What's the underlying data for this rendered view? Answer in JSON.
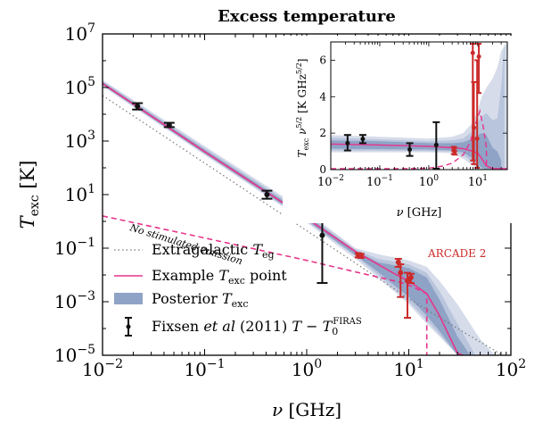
{
  "chart_data": [
    {
      "type": "line",
      "title": "Excess temperature",
      "xlabel": "ν [GHz]",
      "ylabel": "T_exc [K]",
      "x_scale": "log",
      "y_scale": "log",
      "xlim": [
        0.01,
        100
      ],
      "ylim": [
        1e-05,
        10000000
      ],
      "x_ticks": [
        {
          "v": 0.01,
          "b": "10",
          "e": "−2"
        },
        {
          "v": 0.1,
          "b": "10",
          "e": "−1"
        },
        {
          "v": 1,
          "b": "10",
          "e": "0"
        },
        {
          "v": 10,
          "b": "10",
          "e": "1"
        },
        {
          "v": 100,
          "b": "10",
          "e": "2"
        }
      ],
      "y_ticks": [
        {
          "v": 1e-05,
          "b": "10",
          "e": "−5"
        },
        {
          "v": 0.001,
          "b": "10",
          "e": "−3"
        },
        {
          "v": 0.1,
          "b": "10",
          "e": "−1"
        },
        {
          "v": 10,
          "b": "10",
          "e": "1"
        },
        {
          "v": 1000,
          "b": "10",
          "e": "3"
        },
        {
          "v": 100000,
          "b": "10",
          "e": "5"
        },
        {
          "v": 10000000,
          "b": "10",
          "e": "7"
        }
      ],
      "series": [
        {
          "name": "Extragalactic T_eg",
          "style": "dotted",
          "color": "#777777",
          "x": [
            0.01,
            0.1,
            1,
            10,
            30,
            100
          ],
          "y": [
            50000,
            150,
            0.45,
            0.0013,
            0.0001,
            6.6e-06
          ]
        },
        {
          "name": "Example T_exc point",
          "style": "solid",
          "color": "#e8338a",
          "x": [
            0.01,
            0.1,
            1,
            3,
            8,
            10,
            15,
            20,
            30,
            100
          ],
          "y": [
            140000,
            400,
            1.3,
            0.075,
            0.009,
            0.006,
            0.002,
            0.0003,
            1.2e-05,
            2e-06
          ]
        },
        {
          "name": "No stimulated emission",
          "style": "dashed",
          "color": "#e8338a",
          "x": [
            0.01,
            0.1,
            1,
            3,
            8,
            10,
            12,
            15,
            15.01
          ],
          "y": [
            1.6,
            0.24,
            0.035,
            0.013,
            0.0055,
            0.0042,
            0.003,
            0.002,
            1e-05
          ]
        }
      ],
      "posterior": {
        "name": "Posterior T_exc",
        "colors": [
          "#d6dcea",
          "#b9c5dc",
          "#8fa3c6"
        ],
        "bands": [
          {
            "x": [
              0.01,
              0.1,
              1,
              3,
              5,
              10,
              15,
              20,
              30,
              50,
              70
            ],
            "lo": [
              110000,
              300,
              0.9,
              0.04,
              0.008,
              0.0008,
              0.00015,
              5e-05,
              1e-05,
              1e-05,
              1e-05
            ],
            "hi": [
              190000,
              650,
              2.3,
              0.1,
              0.06,
              0.035,
              0.02,
              0.006,
              0.0008,
              4e-05,
              1e-05
            ]
          },
          {
            "x": [
              0.01,
              0.1,
              1,
              3,
              5,
              10,
              15,
              20,
              30,
              45
            ],
            "lo": [
              120000,
              330,
              1.0,
              0.05,
              0.01,
              0.001,
              0.0002,
              6e-05,
              1e-05,
              1e-05
            ],
            "hi": [
              175000,
              550,
              1.9,
              0.09,
              0.04,
              0.025,
              0.012,
              0.0025,
              0.00015,
              1e-05
            ]
          },
          {
            "x": [
              0.01,
              0.1,
              1,
              3,
              5,
              10,
              15,
              20,
              30,
              40
            ],
            "lo": [
              125000,
              350,
              1.1,
              0.055,
              0.013,
              0.0015,
              0.0003,
              8e-05,
              1e-05,
              1e-05
            ],
            "hi": [
              160000,
              480,
              1.6,
              0.08,
              0.03,
              0.018,
              0.008,
              0.0012,
              5e-05,
              1e-05
            ]
          }
        ]
      },
      "fixsen_points": [
        {
          "x": 0.022,
          "y": 20000,
          "lo": 15000,
          "hi": 26000
        },
        {
          "x": 0.045,
          "y": 4000,
          "lo": 3300,
          "hi": 4800
        },
        {
          "x": 0.408,
          "y": 10,
          "lo": 7,
          "hi": 14
        },
        {
          "x": 1.42,
          "y": 0.3,
          "lo": 0.005,
          "hi": 1.0
        }
      ],
      "arcade_points": [
        {
          "x": 3.2,
          "y": 0.055,
          "lo": 0.045,
          "hi": 0.065
        },
        {
          "x": 3.4,
          "y": 0.052,
          "lo": 0.043,
          "hi": 0.061
        },
        {
          "x": 7.9,
          "y": 0.03,
          "lo": 0.02,
          "hi": 0.04
        },
        {
          "x": 8.3,
          "y": 0.012,
          "lo": 0.0015,
          "hi": 0.025
        },
        {
          "x": 9.7,
          "y": 0.006,
          "lo": 0.00025,
          "hi": 0.012
        },
        {
          "x": 10.5,
          "y": 0.008,
          "lo": 0.005,
          "hi": 0.011
        }
      ],
      "legend": {
        "position": "lower-left",
        "items": [
          {
            "key": "eg",
            "text": "Extragalactic ",
            "math": "T",
            "sub": "eg"
          },
          {
            "key": "ex",
            "text": "Example ",
            "math": "T",
            "sub": "exc",
            "after": " point"
          },
          {
            "key": "post",
            "text": "Posterior ",
            "math": "T",
            "sub": "exc"
          },
          {
            "key": "fix",
            "text": "Fixsen ",
            "ital": "et al",
            "after": " (2011) ",
            "math": "T − T",
            "sub": "0",
            "sup": "FIRAS"
          }
        ]
      },
      "annotations": {
        "no_stim": "No stimulated emission",
        "arcade": "ARCADE 2"
      },
      "colors": {
        "red": "#cc2a2a",
        "black": "#111111",
        "pink": "#e8338a"
      }
    },
    {
      "type": "line",
      "inset": true,
      "xlabel": "ν [GHz]",
      "ylabel": "T_exc ν^5/2 [K GHz^5/2]",
      "x_scale": "log",
      "y_scale": "linear",
      "xlim": [
        0.01,
        40
      ],
      "ylim": [
        0,
        7
      ],
      "x_ticks": [
        {
          "v": 0.01,
          "b": "10",
          "e": "−2"
        },
        {
          "v": 0.1,
          "b": "10",
          "e": "−1"
        },
        {
          "v": 1,
          "b": "10",
          "e": "0"
        },
        {
          "v": 10,
          "b": "10",
          "e": "1"
        }
      ],
      "y_ticks": [
        0,
        2,
        4,
        6
      ],
      "series": [
        {
          "name": "Example T_exc point",
          "style": "solid",
          "color": "#e8338a",
          "x": [
            0.01,
            0.1,
            1,
            3,
            5,
            8,
            10,
            12,
            15,
            20,
            40
          ],
          "y": [
            1.4,
            1.35,
            1.28,
            1.2,
            1.15,
            1.0,
            0.9,
            0.6,
            0.2,
            0.06,
            0.05
          ]
        },
        {
          "name": "No stimulated emission",
          "style": "dashed",
          "color": "#e8338a",
          "x": [
            0.01,
            0.3,
            1,
            2,
            3,
            5,
            7,
            9,
            11,
            13,
            15,
            15.01
          ],
          "y": [
            0.05,
            0.05,
            0.08,
            0.2,
            0.35,
            0.8,
            1.5,
            2.5,
            3.2,
            2.3,
            1.2,
            0.05
          ]
        }
      ],
      "posterior": {
        "colors": [
          "#d6dcea",
          "#b9c5dc",
          "#8fa3c6"
        ],
        "bands": [
          {
            "x": [
              0.01,
              0.1,
              1,
              3,
              5,
              8,
              10,
              12,
              15,
              20,
              25,
              30,
              40
            ],
            "lo": [
              0.95,
              0.95,
              0.95,
              0.9,
              0.6,
              0.2,
              0.05,
              0,
              0,
              0,
              0,
              0,
              0
            ],
            "hi": [
              1.9,
              1.8,
              1.7,
              1.8,
              2.0,
              2.6,
              3.3,
              4.0,
              4.5,
              5.0,
              5.6,
              6.5,
              7
            ]
          },
          {
            "x": [
              0.01,
              0.1,
              1,
              3,
              5,
              8,
              10,
              12,
              15,
              20,
              25,
              30,
              35
            ],
            "lo": [
              1.05,
              1.05,
              1.02,
              1.0,
              0.8,
              0.4,
              0.15,
              0,
              0,
              0,
              0,
              0,
              0
            ],
            "hi": [
              1.75,
              1.65,
              1.55,
              1.6,
              1.7,
              2.1,
              2.6,
              2.9,
              3.1,
              2.7,
              2.8,
              4.5,
              7
            ]
          },
          {
            "x": [
              0.01,
              0.1,
              1,
              3,
              5,
              8,
              10,
              12,
              15,
              20,
              25,
              30
            ],
            "lo": [
              1.15,
              1.12,
              1.1,
              1.05,
              0.95,
              0.6,
              0.3,
              0.1,
              0,
              0,
              0,
              0
            ],
            "hi": [
              1.6,
              1.55,
              1.45,
              1.45,
              1.5,
              1.7,
              1.9,
              2.0,
              1.9,
              1.2,
              1.0,
              0.5
            ]
          }
        ]
      },
      "fixsen_points": [
        {
          "x": 0.022,
          "y": 1.45,
          "lo": 1.05,
          "hi": 1.9
        },
        {
          "x": 0.045,
          "y": 1.68,
          "lo": 1.45,
          "hi": 1.9
        },
        {
          "x": 0.408,
          "y": 1.1,
          "lo": 0.75,
          "hi": 1.45
        },
        {
          "x": 1.42,
          "y": 1.35,
          "lo": 0.05,
          "hi": 2.6
        }
      ],
      "arcade_points": [
        {
          "x": 3.2,
          "y": 1.05,
          "lo": 0.85,
          "hi": 1.25
        },
        {
          "x": 3.4,
          "y": 1.0,
          "lo": 0.82,
          "hi": 1.2
        },
        {
          "x": 7.9,
          "y": 6.4,
          "lo": 0.5,
          "hi": 6.9
        },
        {
          "x": 8.3,
          "y": 2.3,
          "lo": 0.3,
          "hi": 4.8
        },
        {
          "x": 9.7,
          "y": 1.7,
          "lo": 0.1,
          "hi": 6.0
        },
        {
          "x": 10.5,
          "y": 6.2,
          "lo": 4.2,
          "hi": 6.9
        }
      ]
    }
  ]
}
